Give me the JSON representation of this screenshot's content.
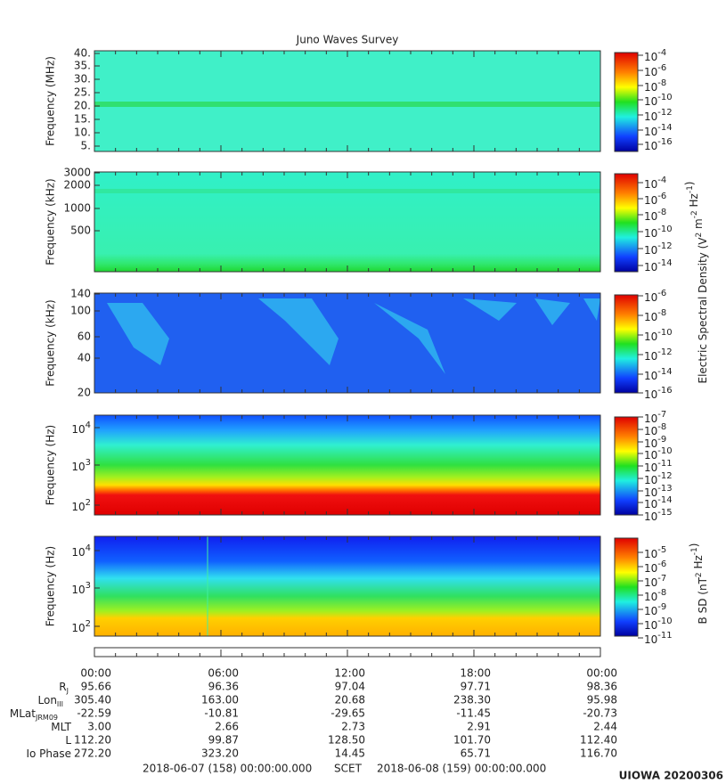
{
  "title": "Juno Waves Survey",
  "panels": [
    {
      "ylabel": "Frequency (MHz)",
      "yticks": [
        "40.",
        "35.",
        "30.",
        "25.",
        "20.",
        "15.",
        "10.",
        "5."
      ],
      "cticks": [
        "-4",
        "-6",
        "-8",
        "-10",
        "-12",
        "-14",
        "-16"
      ]
    },
    {
      "ylabel": "Frequency (kHz)",
      "yticks": [
        "3000",
        "2000",
        "1000",
        "500"
      ],
      "cticks": [
        "-4",
        "-6",
        "-8",
        "-10",
        "-12",
        "-14"
      ]
    },
    {
      "ylabel": "Frequency (kHz)",
      "yticks": [
        "140",
        "100",
        "60",
        "40",
        "20"
      ],
      "cticks": [
        "-6",
        "-8",
        "-10",
        "-12",
        "-14",
        "-16"
      ]
    },
    {
      "ylabel": "Frequency (Hz)",
      "yticks": [
        {
          "base": "10",
          "exp": "4"
        },
        {
          "base": "10",
          "exp": "3"
        },
        {
          "base": "10",
          "exp": "2"
        }
      ],
      "cticks": [
        "-7",
        "-8",
        "-9",
        "-10",
        "-11",
        "-12",
        "-13",
        "-14",
        "-15"
      ]
    },
    {
      "ylabel": "Frequency (Hz)",
      "yticks": [
        {
          "base": "10",
          "exp": "4"
        },
        {
          "base": "10",
          "exp": "3"
        },
        {
          "base": "10",
          "exp": "2"
        }
      ],
      "cticks": [
        "-5",
        "-6",
        "-7",
        "-8",
        "-9",
        "-10",
        "-11"
      ]
    }
  ],
  "cbar_base": "10",
  "elec_label": [
    {
      "t": "Electric Spectral Density (V"
    },
    {
      "sup": "2"
    },
    {
      "t": " m"
    },
    {
      "sup": "-2"
    },
    {
      "t": " Hz"
    },
    {
      "sup": "-1"
    },
    {
      "t": ")"
    }
  ],
  "bsd_label": [
    {
      "t": "B SD (nT"
    },
    {
      "sup": "2"
    },
    {
      "t": " Hz"
    },
    {
      "sup": "-1"
    },
    {
      "t": ")"
    }
  ],
  "times": [
    "00:00",
    "06:00",
    "12:00",
    "18:00",
    "00:00"
  ],
  "ephem": [
    {
      "label": "R",
      "sub": "J",
      "values": [
        "95.66",
        "96.36",
        "97.04",
        "97.71",
        "98.36"
      ]
    },
    {
      "label": "Lon",
      "sub": "III",
      "values": [
        "305.40",
        "163.00",
        "20.68",
        "238.30",
        "95.98"
      ]
    },
    {
      "label": "MLat",
      "sub": "JRM09",
      "values": [
        "-22.59",
        "-10.81",
        "-29.65",
        "-11.45",
        "-20.73"
      ]
    },
    {
      "label": "MLT",
      "values": [
        "3.00",
        "2.66",
        "2.73",
        "2.91",
        "2.44"
      ]
    },
    {
      "label": "L",
      "values": [
        "112.20",
        "99.87",
        "128.50",
        "101.70",
        "112.40"
      ]
    },
    {
      "label": "Io Phase",
      "values": [
        "272.20",
        "323.20",
        "14.45",
        "65.71",
        "116.70"
      ]
    }
  ],
  "footer": {
    "start": "2018-06-07 (158) 00:00:00.000",
    "mid": "SCET",
    "end": "2018-06-08 (159) 00:00:00.000"
  },
  "stamp": "UIOWA 20200306"
}
